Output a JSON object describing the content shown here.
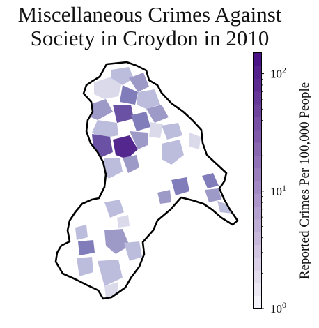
{
  "title": {
    "line1": "Miscellaneous Crimes Against",
    "line2": "Society in Croydon in 2010"
  },
  "colorbar": {
    "label": "Reported Crimes Per 100,000 People",
    "scale": "log",
    "range": [
      1,
      150
    ],
    "ticks": [
      {
        "value": 1,
        "base": "10",
        "exp": "0"
      },
      {
        "value": 10,
        "base": "10",
        "exp": "1"
      },
      {
        "value": 100,
        "base": "10",
        "exp": "2"
      }
    ],
    "bands": 20,
    "colors": {
      "low": "#f4f3f9",
      "high": "#4a1486"
    }
  },
  "map": {
    "boundary_color": "#000000",
    "background": "#ffffff",
    "colormap": "Purples"
  }
}
